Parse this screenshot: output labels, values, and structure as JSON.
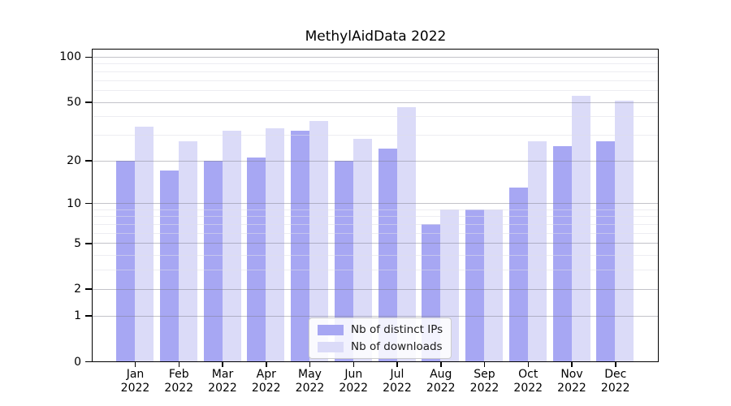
{
  "chart_data": {
    "type": "bar",
    "title": "MethylAidData 2022",
    "year_label": "2022",
    "months": [
      "Jan",
      "Feb",
      "Mar",
      "Apr",
      "May",
      "Jun",
      "Jul",
      "Aug",
      "Sep",
      "Oct",
      "Nov",
      "Dec"
    ],
    "categories": [
      "Jan 2022",
      "Feb 2022",
      "Mar 2022",
      "Apr 2022",
      "May 2022",
      "Jun 2022",
      "Jul 2022",
      "Aug 2022",
      "Sep 2022",
      "Oct 2022",
      "Nov 2022",
      "Dec 2022"
    ],
    "series": [
      {
        "name": "Nb of distinct IPs",
        "color": "#a7a7f3",
        "values": [
          20,
          17,
          20,
          21,
          32,
          20,
          24,
          7,
          9,
          13,
          25,
          27
        ]
      },
      {
        "name": "Nb of downloads",
        "color": "#dbdbf8",
        "values": [
          34,
          27,
          32,
          33,
          37,
          28,
          46,
          9,
          9,
          27,
          55,
          51
        ]
      }
    ],
    "yscale": "log1p",
    "ylim": [
      0,
      112
    ],
    "yticks": [
      0,
      1,
      2,
      5,
      10,
      20,
      50,
      100
    ],
    "minor_gridlines": [
      3,
      4,
      6,
      7,
      8,
      9,
      30,
      40,
      60,
      70,
      80,
      90
    ],
    "grid": true,
    "legend_position": "inside-bottom-center",
    "xlabel": "",
    "ylabel": "",
    "frame_color": "#000000",
    "background_color": "#ffffff"
  }
}
